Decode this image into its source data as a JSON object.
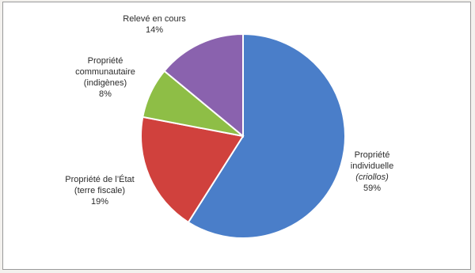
{
  "chart_data": {
    "type": "pie",
    "slices": [
      {
        "label_lines": [
          "Propriété",
          "individuelle",
          "(criollos)"
        ],
        "value": 59,
        "value_label": "59%",
        "color": "#4a7ec9"
      },
      {
        "label_lines": [
          "Propriété de l’État",
          "(terre fiscale)"
        ],
        "value": 19,
        "value_label": "19%",
        "color": "#d0413d"
      },
      {
        "label_lines": [
          "Propriété",
          "communautaire",
          "(indigènes)"
        ],
        "value": 8,
        "value_label": "8%",
        "color": "#8ebe46"
      },
      {
        "label_lines": [
          "Relevé en cours"
        ],
        "value": 14,
        "value_label": "14%",
        "color": "#8a62ae"
      }
    ],
    "start": "12 o'clock",
    "direction": "clockwise",
    "legend": "none"
  }
}
